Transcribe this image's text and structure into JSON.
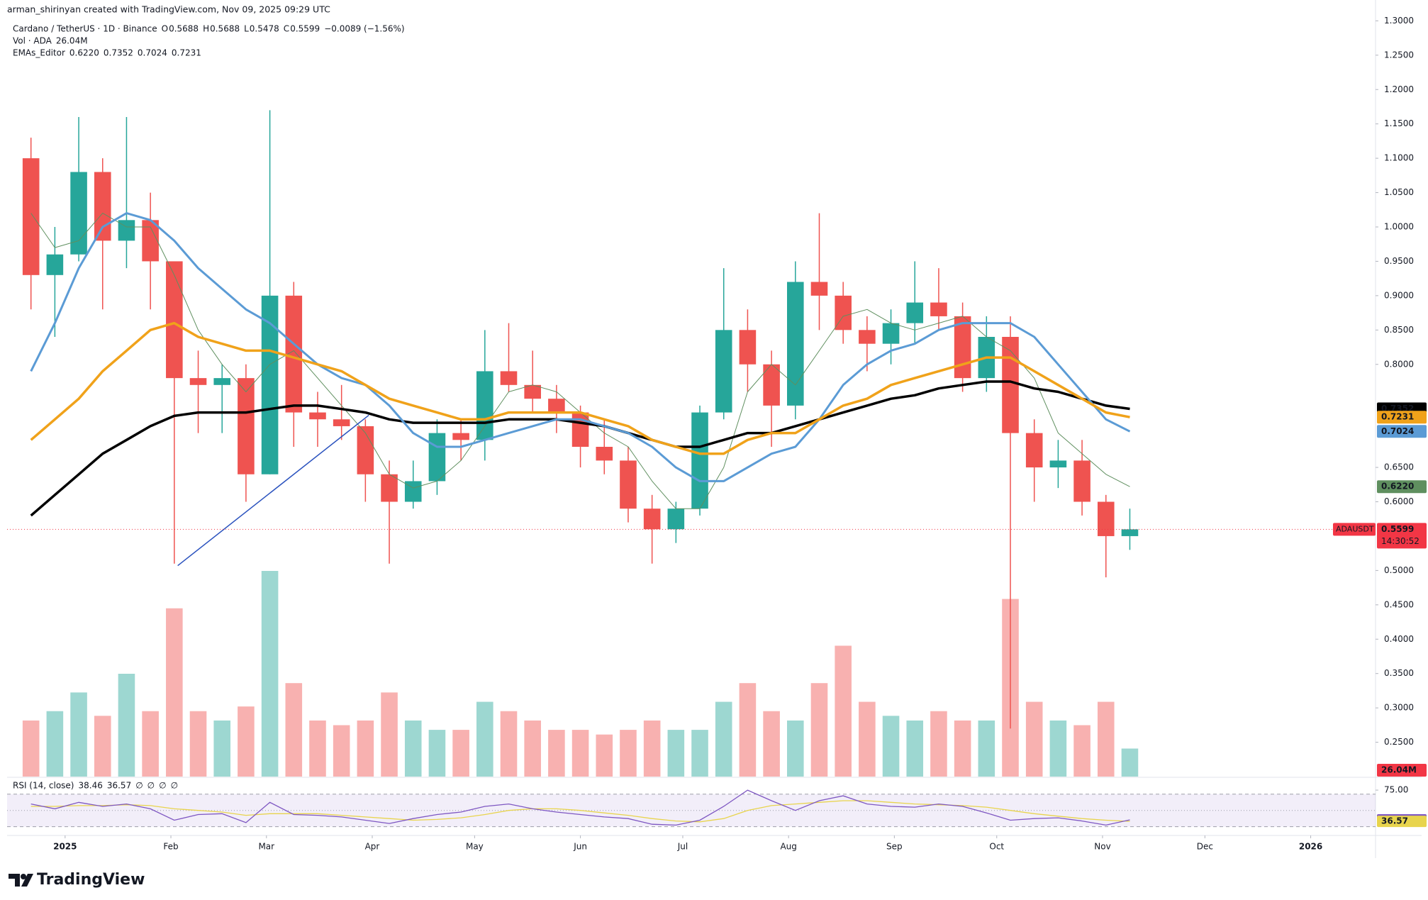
{
  "header": {
    "credit": "arman_shirinyan created with TradingView.com, Nov 09, 2025 09:29 UTC"
  },
  "legend": {
    "symbol": "Cardano / TetherUS · 1D · Binance",
    "ohlc": [
      {
        "key": "O",
        "value": "0.5688"
      },
      {
        "key": "H",
        "value": "0.5688"
      },
      {
        "key": "L",
        "value": "0.5478"
      },
      {
        "key": "C",
        "value": "0.5599"
      }
    ],
    "change": "−0.0089 (−1.56%)",
    "volume_title": "Vol · ADA",
    "ema_title": "EMAs_Editor",
    "rsi_title": "RSI (14, close)",
    "rsi_extra": [
      "∅",
      "∅",
      "∅",
      "∅"
    ]
  },
  "chart_data": {
    "type": "candlestick",
    "up_color": "#26a69a",
    "down_color": "#ef5350",
    "x": [
      -10,
      -3,
      4,
      11,
      18,
      25,
      32,
      39,
      46,
      53,
      60,
      67,
      74,
      81,
      88,
      95,
      102,
      109,
      116,
      123,
      130,
      137,
      144,
      151,
      158,
      165,
      172,
      179,
      186,
      193,
      200,
      207,
      214,
      221,
      228,
      235,
      242,
      249,
      256,
      263,
      270,
      277,
      284,
      291,
      298,
      305,
      312
    ],
    "open": [
      1.1,
      0.93,
      0.96,
      1.08,
      0.98,
      1.01,
      0.95,
      0.78,
      0.77,
      0.78,
      0.64,
      0.9,
      0.73,
      0.72,
      0.71,
      0.64,
      0.6,
      0.63,
      0.7,
      0.69,
      0.79,
      0.77,
      0.75,
      0.73,
      0.68,
      0.66,
      0.59,
      0.56,
      0.59,
      0.73,
      0.85,
      0.8,
      0.74,
      0.92,
      0.9,
      0.85,
      0.83,
      0.86,
      0.89,
      0.87,
      0.78,
      0.84,
      0.7,
      0.65,
      0.66,
      0.6,
      0.55
    ],
    "high": [
      1.13,
      1.0,
      1.16,
      1.1,
      1.16,
      1.05,
      0.95,
      0.82,
      0.8,
      0.8,
      1.17,
      0.92,
      0.76,
      0.77,
      0.72,
      0.66,
      0.66,
      0.72,
      0.72,
      0.85,
      0.86,
      0.82,
      0.77,
      0.74,
      0.72,
      0.68,
      0.61,
      0.6,
      0.74,
      0.94,
      0.88,
      0.82,
      0.95,
      1.02,
      0.92,
      0.87,
      0.88,
      0.95,
      0.94,
      0.89,
      0.87,
      0.87,
      0.72,
      0.69,
      0.69,
      0.61,
      0.59
    ],
    "low": [
      0.88,
      0.84,
      0.95,
      0.88,
      0.94,
      0.88,
      0.51,
      0.7,
      0.7,
      0.6,
      0.64,
      0.68,
      0.68,
      0.69,
      0.6,
      0.51,
      0.59,
      0.61,
      0.66,
      0.66,
      0.76,
      0.73,
      0.7,
      0.65,
      0.64,
      0.57,
      0.51,
      0.54,
      0.58,
      0.72,
      0.76,
      0.68,
      0.72,
      0.85,
      0.83,
      0.79,
      0.8,
      0.83,
      0.85,
      0.76,
      0.76,
      0.27,
      0.6,
      0.62,
      0.58,
      0.49,
      0.53
    ],
    "close": [
      0.93,
      0.96,
      1.08,
      0.98,
      1.01,
      0.95,
      0.78,
      0.77,
      0.78,
      0.64,
      0.9,
      0.73,
      0.72,
      0.71,
      0.64,
      0.6,
      0.63,
      0.7,
      0.69,
      0.79,
      0.77,
      0.75,
      0.73,
      0.68,
      0.66,
      0.59,
      0.56,
      0.59,
      0.73,
      0.85,
      0.8,
      0.74,
      0.92,
      0.9,
      0.85,
      0.83,
      0.86,
      0.89,
      0.87,
      0.78,
      0.84,
      0.7,
      0.65,
      0.66,
      0.6,
      0.55,
      0.5599
    ],
    "xlim": [
      -17,
      384
    ],
    "xticks": [
      {
        "value": 0,
        "label": "2025"
      },
      {
        "value": 31,
        "label": "Feb"
      },
      {
        "value": 59,
        "label": "Mar"
      },
      {
        "value": 90,
        "label": "Apr"
      },
      {
        "value": 120,
        "label": "May"
      },
      {
        "value": 151,
        "label": "Jun"
      },
      {
        "value": 181,
        "label": "Jul"
      },
      {
        "value": 212,
        "label": "Aug"
      },
      {
        "value": 243,
        "label": "Sep"
      },
      {
        "value": 273,
        "label": "Oct"
      },
      {
        "value": 304,
        "label": "Nov"
      },
      {
        "value": 334,
        "label": "Dec"
      },
      {
        "value": 365,
        "label": "2026"
      }
    ],
    "ylim": [
      0.2,
      1.32
    ],
    "yticks": [
      {
        "value": 1.3,
        "label": "1.3000"
      },
      {
        "value": 1.25,
        "label": "1.2500"
      },
      {
        "value": 1.2,
        "label": "1.2000"
      },
      {
        "value": 1.15,
        "label": "1.1500"
      },
      {
        "value": 1.1,
        "label": "1.1000"
      },
      {
        "value": 1.05,
        "label": "1.0500"
      },
      {
        "value": 1.0,
        "label": "1.0000"
      },
      {
        "value": 0.95,
        "label": "0.9500"
      },
      {
        "value": 0.9,
        "label": "0.9000"
      },
      {
        "value": 0.85,
        "label": "0.8500"
      },
      {
        "value": 0.8,
        "label": "0.8000"
      },
      {
        "value": 0.65,
        "label": "0.6500"
      },
      {
        "value": 0.6,
        "label": "0.6000"
      },
      {
        "value": 0.5,
        "label": "0.5000"
      },
      {
        "value": 0.45,
        "label": "0.4500"
      },
      {
        "value": 0.4,
        "label": "0.4000"
      },
      {
        "value": 0.35,
        "label": "0.3500"
      },
      {
        "value": 0.3,
        "label": "0.3000"
      },
      {
        "value": 0.25,
        "label": "0.2500"
      }
    ],
    "series": [
      {
        "color": "#5f8f5f",
        "width": 1,
        "label": "0.6220",
        "values": [
          1.02,
          0.97,
          0.98,
          1.02,
          1.0,
          1.0,
          0.93,
          0.85,
          0.8,
          0.76,
          0.8,
          0.82,
          0.78,
          0.74,
          0.7,
          0.64,
          0.62,
          0.63,
          0.66,
          0.71,
          0.76,
          0.77,
          0.76,
          0.73,
          0.7,
          0.68,
          0.63,
          0.59,
          0.59,
          0.65,
          0.76,
          0.8,
          0.77,
          0.82,
          0.87,
          0.88,
          0.86,
          0.85,
          0.86,
          0.87,
          0.84,
          0.82,
          0.78,
          0.7,
          0.67,
          0.64,
          0.622
        ]
      },
      {
        "color": "#000000",
        "width": 3.5,
        "label": "0.7352",
        "values": [
          0.58,
          0.61,
          0.64,
          0.67,
          0.69,
          0.71,
          0.725,
          0.73,
          0.73,
          0.73,
          0.735,
          0.74,
          0.74,
          0.735,
          0.73,
          0.72,
          0.715,
          0.715,
          0.715,
          0.715,
          0.72,
          0.72,
          0.72,
          0.715,
          0.71,
          0.7,
          0.69,
          0.68,
          0.68,
          0.69,
          0.7,
          0.7,
          0.71,
          0.72,
          0.73,
          0.74,
          0.75,
          0.755,
          0.765,
          0.77,
          0.775,
          0.775,
          0.765,
          0.76,
          0.75,
          0.74,
          0.7352
        ]
      },
      {
        "color": "#5b9bd5",
        "width": 3,
        "label": "0.7024",
        "values": [
          0.79,
          0.86,
          0.94,
          1.0,
          1.02,
          1.01,
          0.98,
          0.94,
          0.91,
          0.88,
          0.86,
          0.83,
          0.8,
          0.78,
          0.77,
          0.74,
          0.7,
          0.68,
          0.68,
          0.69,
          0.7,
          0.71,
          0.72,
          0.72,
          0.71,
          0.7,
          0.68,
          0.65,
          0.63,
          0.63,
          0.65,
          0.67,
          0.68,
          0.72,
          0.77,
          0.8,
          0.82,
          0.83,
          0.85,
          0.86,
          0.86,
          0.86,
          0.84,
          0.8,
          0.76,
          0.72,
          0.7024
        ]
      },
      {
        "color": "#f0a21a",
        "width": 3.5,
        "label": "0.7231",
        "values": [
          0.69,
          0.72,
          0.75,
          0.79,
          0.82,
          0.85,
          0.86,
          0.84,
          0.83,
          0.82,
          0.82,
          0.81,
          0.8,
          0.79,
          0.77,
          0.75,
          0.74,
          0.73,
          0.72,
          0.72,
          0.73,
          0.73,
          0.73,
          0.73,
          0.72,
          0.71,
          0.69,
          0.68,
          0.67,
          0.67,
          0.69,
          0.7,
          0.7,
          0.72,
          0.74,
          0.75,
          0.77,
          0.78,
          0.79,
          0.8,
          0.81,
          0.81,
          0.79,
          0.77,
          0.75,
          0.73,
          0.7231
        ]
      }
    ],
    "volume": {
      "label": "26.04M",
      "values": [
        600,
        700,
        900,
        650,
        1100,
        700,
        1800,
        700,
        600,
        750,
        2200,
        1000,
        600,
        550,
        600,
        900,
        600,
        500,
        500,
        800,
        700,
        600,
        500,
        500,
        450,
        500,
        600,
        500,
        500,
        800,
        1000,
        700,
        600,
        1000,
        1400,
        800,
        650,
        600,
        700,
        600,
        600,
        1900,
        800,
        600,
        550,
        800,
        300
      ]
    },
    "trendline": {
      "color": "#2a52be",
      "x": [
        33,
        89
      ],
      "y": [
        0.507,
        0.726
      ]
    },
    "last_price": {
      "symbol": "ADAUSDT",
      "label": "0.5599",
      "countdown": "14:30:52",
      "color": "#f23645"
    },
    "rsi": {
      "ylim": [
        21,
        89
      ],
      "yticks": [
        {
          "value": 75,
          "label": "75.00"
        }
      ],
      "bands": [
        70,
        50,
        30
      ],
      "series": [
        {
          "color": "#7e57c2",
          "label": "38.46",
          "values": [
            58,
            52,
            60,
            55,
            58,
            52,
            38,
            45,
            46,
            35,
            60,
            45,
            44,
            42,
            38,
            34,
            40,
            45,
            48,
            55,
            58,
            52,
            48,
            45,
            42,
            40,
            33,
            32,
            38,
            55,
            75,
            62,
            50,
            62,
            68,
            58,
            55,
            54,
            58,
            55,
            47,
            38,
            40,
            41,
            37,
            32,
            38.46
          ]
        },
        {
          "color": "#e8d44d",
          "label": "36.57",
          "values": [
            55,
            55,
            56,
            56,
            57,
            56,
            52,
            50,
            48,
            44,
            46,
            46,
            46,
            44,
            42,
            40,
            38,
            39,
            41,
            45,
            50,
            52,
            52,
            50,
            47,
            44,
            40,
            37,
            36,
            40,
            50,
            56,
            58,
            60,
            62,
            62,
            60,
            58,
            57,
            56,
            54,
            50,
            46,
            43,
            40,
            38,
            36.57
          ]
        }
      ]
    }
  },
  "branding": {
    "logo": "TradingView"
  }
}
